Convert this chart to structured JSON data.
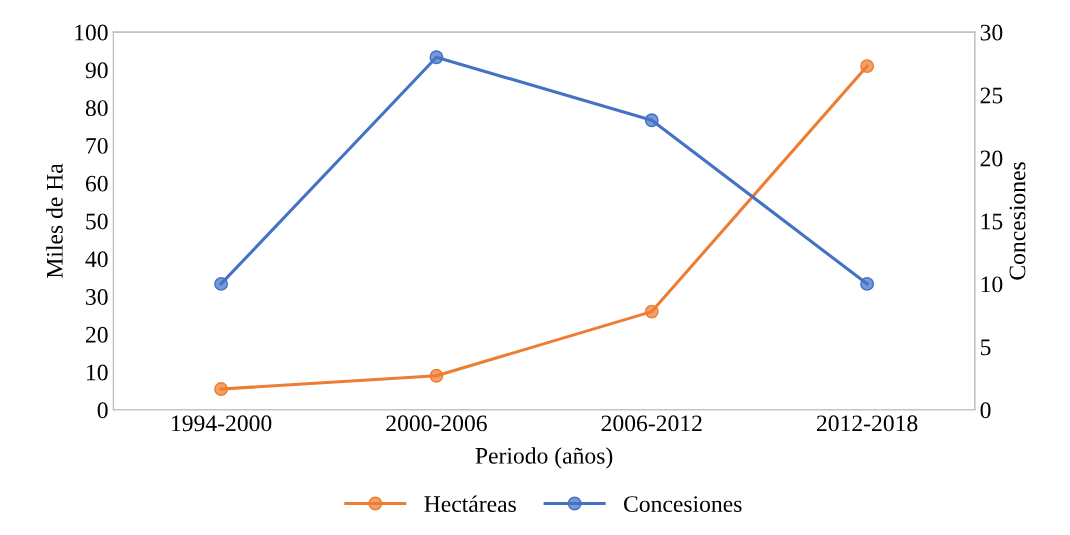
{
  "chart_data": {
    "type": "line",
    "xlabel": "Periodo (años)",
    "ylabel": "Miles de Ha",
    "y2label": "Concesiones",
    "categories": [
      "1994-2000",
      "2000-2006",
      "2006-2012",
      "2012-2018"
    ],
    "series": [
      {
        "name": "Hectáreas",
        "color": "#ed7d31",
        "values": [
          5.5,
          9,
          26,
          91
        ]
      },
      {
        "name": "Concesiones",
        "color": "#4472c4",
        "values": [
          10,
          28,
          23,
          10
        ],
        "axis": "y2"
      }
    ],
    "ylim": [
      0,
      100
    ],
    "yticks": [
      0,
      10,
      20,
      30,
      40,
      50,
      60,
      70,
      80,
      90,
      100
    ],
    "y2lim": [
      0,
      30
    ],
    "y2ticks": [
      0,
      5,
      10,
      15,
      20,
      25,
      30
    ],
    "marker": "circle",
    "line_style": "solid",
    "grid": false,
    "legend": "bottom"
  }
}
